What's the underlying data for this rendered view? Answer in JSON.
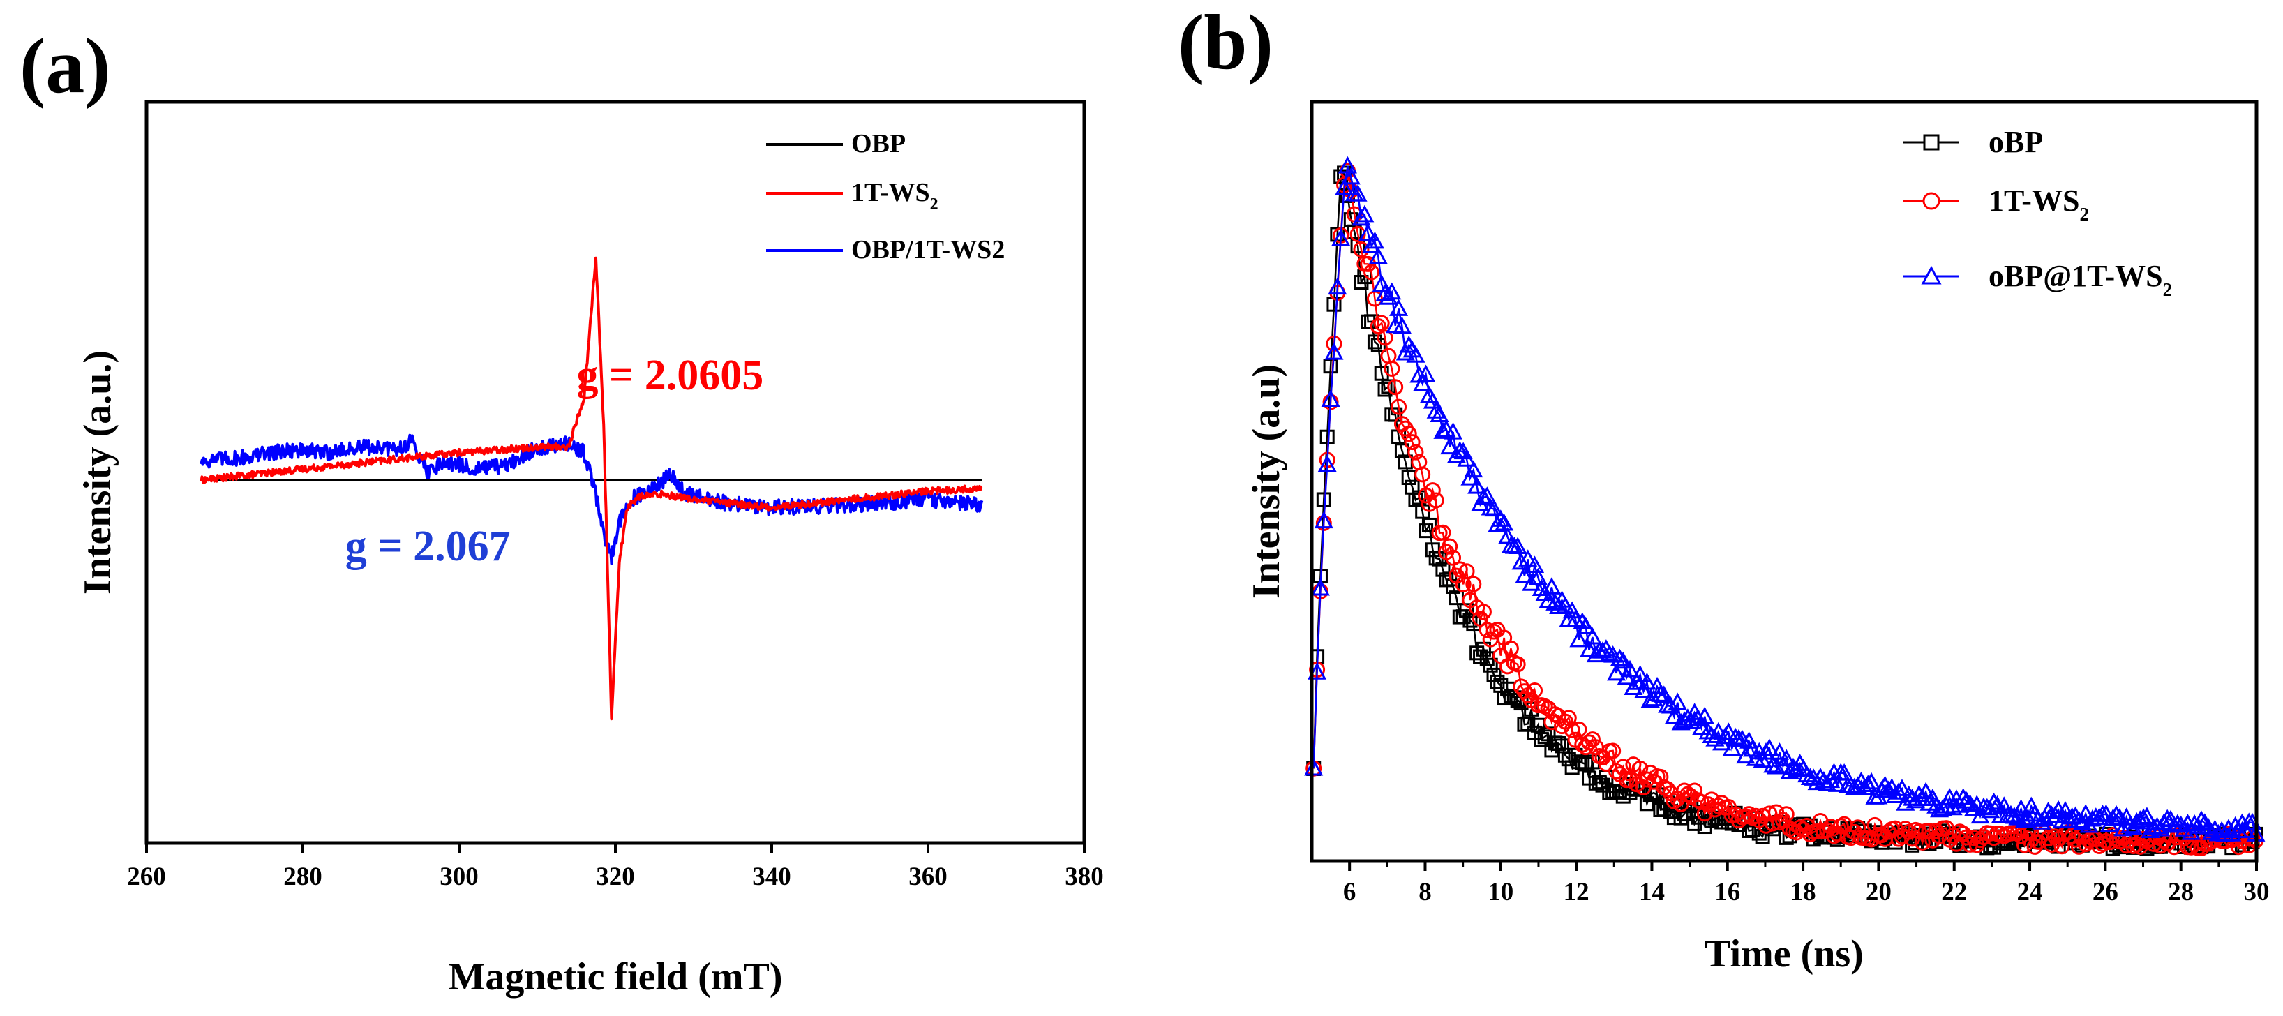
{
  "chart_data": [
    {
      "panel": "(a)",
      "type": "line",
      "xlabel": "Magnetic field (mT)",
      "ylabel": "Intensity (a.u.)",
      "xlim": [
        260,
        380
      ],
      "ylim": [
        -1.0,
        1.0
      ],
      "xticks": [
        260,
        280,
        300,
        320,
        340,
        360,
        380
      ],
      "yticks_shown": false,
      "legend_position": "top-right",
      "series": [
        {
          "name": "OBP",
          "name_main": "OBP",
          "name_sub": "",
          "color": "#000000",
          "x": [
            267,
            280,
            300,
            320,
            340,
            367
          ],
          "y": [
            0.0,
            0.0,
            0.0,
            0.0,
            0.0,
            0.0
          ]
        },
        {
          "name": "1T-WS2",
          "name_main": "1T-WS",
          "name_sub": "2",
          "color": "#ff0000",
          "x": [
            267,
            280,
            290,
            300,
            305,
            310,
            314,
            316,
            317.5,
            318.5,
            319.5,
            320.5,
            321.5,
            323,
            326,
            330,
            340,
            350,
            360,
            367
          ],
          "y": [
            0.0,
            0.04,
            0.07,
            0.1,
            0.11,
            0.12,
            0.12,
            0.3,
            0.81,
            0.2,
            -0.86,
            -0.3,
            -0.1,
            -0.06,
            -0.05,
            -0.07,
            -0.1,
            -0.07,
            -0.04,
            -0.03
          ]
        },
        {
          "name": "OBP/1T-WS2",
          "name_main": "OBP/1T-WS2",
          "name_sub": "",
          "color": "#0000ff",
          "x": [
            267,
            272,
            278,
            283,
            288,
            292,
            294,
            296,
            298,
            302,
            306,
            310,
            314,
            316,
            317.5,
            318.5,
            319.5,
            320.5,
            322,
            325,
            327,
            329,
            333,
            340,
            350,
            360,
            367
          ],
          "y": [
            0.07,
            0.08,
            0.11,
            0.1,
            0.12,
            0.11,
            0.14,
            0.03,
            0.07,
            0.04,
            0.05,
            0.12,
            0.13,
            0.1,
            -0.05,
            -0.2,
            -0.28,
            -0.15,
            -0.07,
            -0.03,
            0.02,
            -0.05,
            -0.08,
            -0.1,
            -0.09,
            -0.07,
            -0.09
          ]
        }
      ],
      "annotations": [
        {
          "text": "g = 2.0605",
          "color": "#ff0000",
          "x": 327,
          "y": 0.38
        },
        {
          "text": "g = 2.067",
          "color": "#1f3fd6",
          "x": 296,
          "y": -0.24
        }
      ]
    },
    {
      "panel": "(b)",
      "type": "line",
      "xlabel": "Time (ns)",
      "ylabel": "Intensity (a.u)",
      "xlim": [
        5,
        30
      ],
      "ylim": [
        0,
        1.05
      ],
      "xticks": [
        6,
        8,
        10,
        12,
        14,
        16,
        18,
        20,
        22,
        24,
        26,
        28,
        30
      ],
      "yticks_shown": false,
      "legend_position": "top-right",
      "series": [
        {
          "name": "oBP",
          "name_main": "oBP",
          "name_sub": "",
          "color": "#000000",
          "marker": "square",
          "peak_time": 5.8,
          "decay_tau": 2.9,
          "baseline": 0.01
        },
        {
          "name": "1T-WS2",
          "name_main": "1T-WS",
          "name_sub": "2",
          "color": "#ff0000",
          "marker": "circle",
          "peak_time": 5.9,
          "decay_tau": 3.3,
          "baseline": 0.01
        },
        {
          "name": "oBP@1T-WS2",
          "name_main": "oBP@1T-WS",
          "name_sub": "2",
          "color": "#0000ff",
          "marker": "triangle",
          "peak_time": 5.9,
          "decay_tau": 5.2,
          "baseline": 0.02
        }
      ]
    }
  ]
}
